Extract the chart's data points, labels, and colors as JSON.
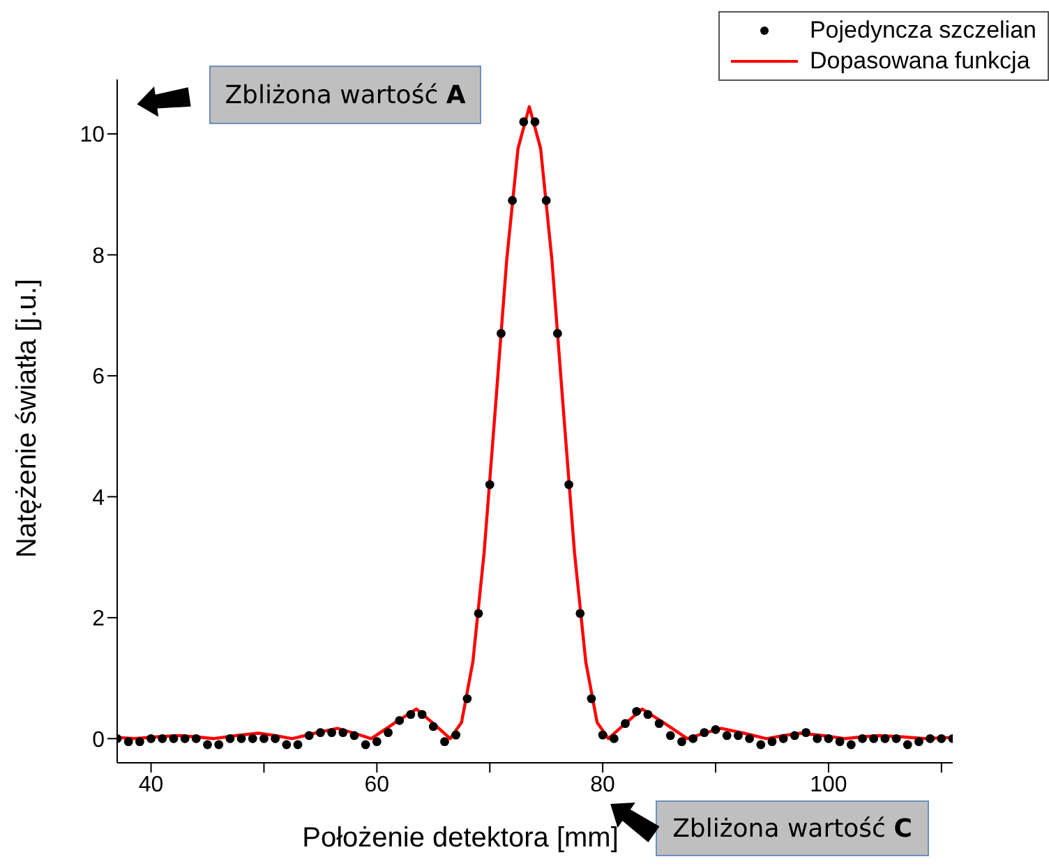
{
  "chart_data": {
    "type": "scatter",
    "xlabel": "Położenie detektora [mm]",
    "ylabel": "Natężenie światła [j.u.]",
    "xlim": [
      37,
      111
    ],
    "xticks": [
      40,
      {
        "value": 50,
        "label": null
      },
      60,
      {
        "value": 70,
        "label": null
      },
      80,
      {
        "value": 90,
        "label": null
      },
      100,
      {
        "value": 110,
        "label": null
      }
    ],
    "ylim": [
      -0.4,
      10.9
    ],
    "yticks": [
      0,
      2,
      4,
      6,
      8,
      10
    ],
    "legend": "top right",
    "annotations": [
      "Zbliżona wartość A",
      "Zbliżona wartość C"
    ],
    "series": [
      {
        "name": "Pojedyncza szczelian",
        "color": "#000000",
        "marker": "circle",
        "x": [
          37,
          38,
          39,
          40,
          41,
          42,
          43,
          44,
          45,
          46,
          47,
          48,
          49,
          50,
          51,
          52,
          53,
          54,
          55,
          56,
          57,
          58,
          59,
          60,
          61,
          62,
          63,
          64,
          65,
          66,
          67,
          68,
          69,
          70,
          71,
          72,
          73,
          74,
          75,
          76,
          77,
          78,
          79,
          80,
          81,
          82,
          83,
          84,
          85,
          86,
          87,
          88,
          89,
          90,
          91,
          92,
          93,
          94,
          95,
          96,
          97,
          98,
          99,
          100,
          101,
          102,
          103,
          104,
          105,
          106,
          107,
          108,
          109,
          110,
          111
        ],
        "values": [
          0,
          -0.05,
          -0.05,
          0,
          0,
          0,
          0,
          0,
          -0.1,
          -0.1,
          0,
          0,
          0,
          0,
          0,
          -0.1,
          -0.1,
          0.05,
          0.1,
          0.1,
          0.1,
          0.05,
          -0.1,
          -0.05,
          0.1,
          0.3,
          0.4,
          0.4,
          0.2,
          -0.05,
          0.06,
          0.66,
          2.07,
          4.2,
          6.7,
          8.9,
          10.2,
          10.2,
          8.9,
          6.7,
          4.2,
          2.07,
          0.66,
          0.06,
          0,
          0.25,
          0.45,
          0.4,
          0.25,
          0.05,
          -0.05,
          0,
          0.1,
          0.15,
          0.05,
          0.05,
          0,
          -0.1,
          -0.05,
          0,
          0.05,
          0.1,
          0,
          0,
          -0.05,
          -0.1,
          0,
          0,
          0,
          0,
          -0.1,
          -0.05,
          0,
          0,
          0
        ]
      },
      {
        "name": "Dopasowana funkcja",
        "type": "line",
        "color": "#ff0000",
        "line_style": "solid",
        "x": [
          37,
          38.5,
          40.5,
          42.5,
          44,
          45.5,
          47.5,
          49.5,
          51,
          52.5,
          54.5,
          56.5,
          58,
          59.5,
          61.5,
          63.5,
          65,
          66.5,
          67.5,
          68.5,
          69.5,
          70.5,
          71.5,
          72.5,
          73.5,
          74.5,
          75.5,
          76.5,
          77.5,
          78.5,
          79.5,
          80.5,
          82,
          83.5,
          85.5,
          87.5,
          89,
          90.5,
          92.5,
          94.5,
          96,
          97.5,
          99.5,
          101.5,
          103,
          104.5,
          106.5,
          108.5,
          111
        ],
        "values": [
          0.02,
          0,
          0.03,
          0.05,
          0.03,
          0,
          0.05,
          0.09,
          0.05,
          0,
          0.09,
          0.17,
          0.09,
          0,
          0.25,
          0.49,
          0.25,
          0,
          0.27,
          1.27,
          3.08,
          5.48,
          7.92,
          9.76,
          10.45,
          9.76,
          7.92,
          5.48,
          3.08,
          1.27,
          0.27,
          0,
          0.25,
          0.49,
          0.25,
          0,
          0.09,
          0.17,
          0.09,
          0,
          0.05,
          0.09,
          0.05,
          0,
          0.03,
          0.05,
          0.03,
          0,
          0.02
        ]
      }
    ]
  }
}
